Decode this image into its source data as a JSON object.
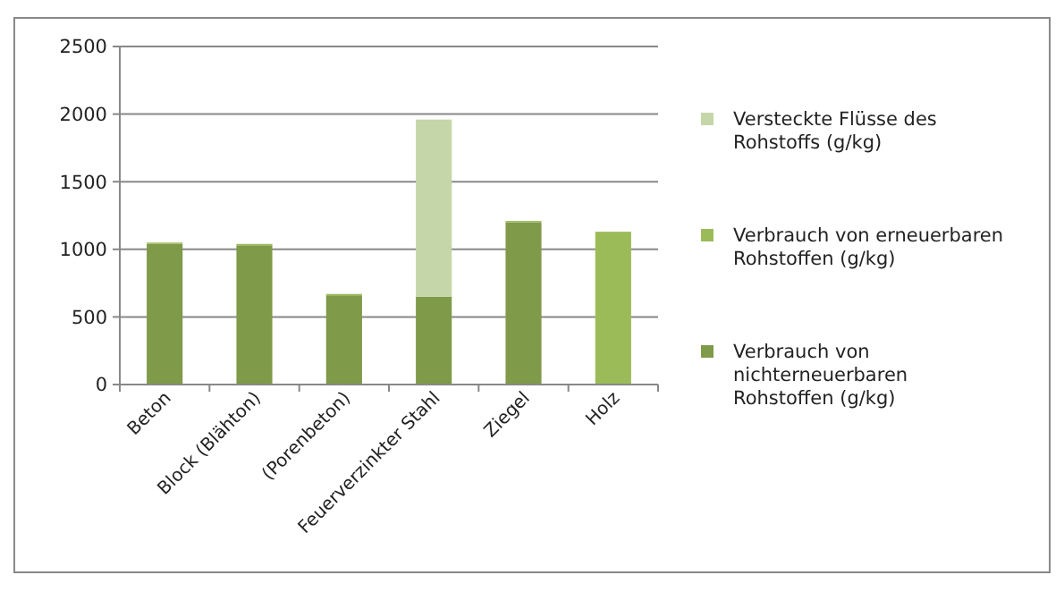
{
  "chart_data": {
    "type": "bar",
    "stacked": true,
    "categories": [
      "Beton",
      "Block (Blähton)",
      "(Porenbeton)",
      "Feuerverzinkter Stahl",
      "Ziegel",
      "Holz"
    ],
    "series": [
      {
        "name": "Verbrauch von nichterneuerbaren Rohstoffen (g/kg)",
        "color": "#7f9a48",
        "values": [
          1040,
          1030,
          660,
          650,
          1200,
          0
        ]
      },
      {
        "name": "Verbrauch von erneuerbaren Rohstoffen (g/kg)",
        "color": "#9bbb59",
        "values": [
          10,
          10,
          10,
          0,
          10,
          1130
        ]
      },
      {
        "name": "Versteckte Flüsse des Rohstoffs (g/kg)",
        "color": "#c5d6a9",
        "values": [
          0,
          0,
          0,
          1310,
          0,
          0
        ]
      }
    ],
    "ylim": [
      0,
      2500
    ],
    "yticks": [
      0,
      500,
      1000,
      1500,
      2000,
      2500
    ],
    "grid": "y",
    "legend": "right"
  }
}
